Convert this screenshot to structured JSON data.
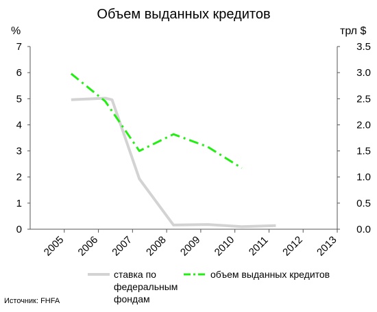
{
  "chart_data": {
    "type": "line",
    "title": "Объем выданных кредитов",
    "y_left_unit": "%",
    "y_right_unit": "трл $",
    "categories": [
      "2005",
      "2006",
      "2007",
      "2008",
      "2009",
      "2010",
      "2011",
      "2012",
      "2013"
    ],
    "y_left_ticks": [
      "0",
      "1",
      "2",
      "3",
      "4",
      "5",
      "6",
      "7"
    ],
    "y_right_ticks": [
      "0.0",
      "0.5",
      "1.0",
      "1.5",
      "2.0",
      "2.5",
      "3.0",
      "3.5"
    ],
    "ylim_left": [
      0,
      7
    ],
    "ylim_right": [
      0,
      3.5
    ],
    "grid": false,
    "legend_position": "bottom",
    "series": [
      {
        "name": "ставка по федеральным фондам",
        "name_lines": [
          "ставка по",
          "федеральным",
          "фондам"
        ],
        "axis": "left",
        "color": "#d3d3d3",
        "style": "solid",
        "x": [
          2006,
          2007,
          2007.2,
          2008,
          2009,
          2010,
          2011,
          2012
        ],
        "values": [
          4.96,
          5.02,
          4.96,
          1.93,
          0.16,
          0.18,
          0.1,
          0.14
        ]
      },
      {
        "name": "объем выданных кредитов",
        "axis": "right",
        "color": "#22ee11",
        "style": "dashdot",
        "x": [
          2006,
          2007,
          2008,
          2009,
          2010,
          2011
        ],
        "values": [
          2.98,
          2.45,
          1.5,
          1.82,
          1.58,
          1.17
        ]
      }
    ]
  },
  "source": "Источник: FHFA"
}
